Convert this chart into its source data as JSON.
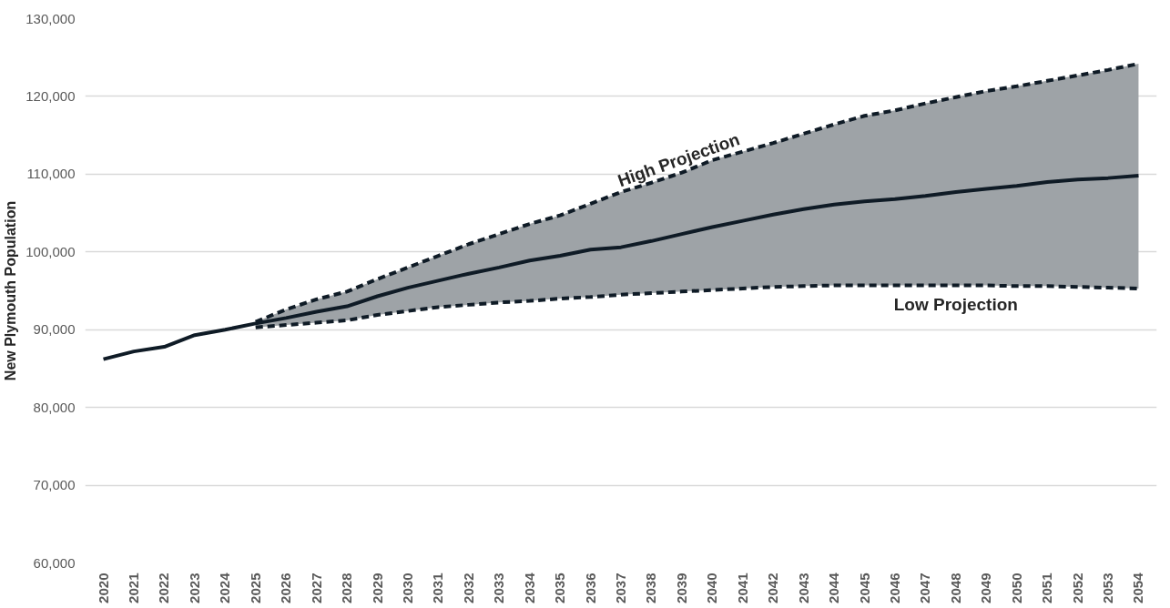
{
  "chart_data": {
    "type": "line",
    "ylabel": "New Plymouth Population",
    "categories": [
      "2020",
      "2021",
      "2022",
      "2023",
      "2024",
      "2025",
      "2026",
      "2027",
      "2028",
      "2029",
      "2030",
      "2031",
      "2032",
      "2033",
      "2034",
      "2035",
      "2036",
      "2037",
      "2038",
      "2039",
      "2040",
      "2041",
      "2042",
      "2043",
      "2044",
      "2045",
      "2046",
      "2047",
      "2048",
      "2049",
      "2050",
      "2051",
      "2052",
      "2053",
      "2054"
    ],
    "series": [
      {
        "color": "#0f1b26",
        "line_style": "solid",
        "values": [
          86200,
          87200,
          87800,
          89300,
          90000,
          90800,
          91500,
          92300,
          93000,
          94300,
          95400,
          96300,
          97200,
          98000,
          98900,
          99500,
          100300,
          100600,
          101400,
          102300,
          103200,
          104000,
          104800,
          105500,
          106100,
          106500,
          106800,
          107200,
          107700,
          108100,
          108500,
          109000,
          109300,
          109500,
          109800
        ],
        "lower": [
          null,
          null,
          null,
          null,
          null,
          90300,
          90600,
          90900,
          91200,
          91900,
          92400,
          92900,
          93200,
          93500,
          93700,
          94000,
          94200,
          94500,
          94700,
          94900,
          95100,
          95300,
          95500,
          95600,
          95700,
          95700,
          95700,
          95700,
          95700,
          95700,
          95600,
          95600,
          95500,
          95400,
          95300
        ],
        "upper": [
          null,
          null,
          null,
          null,
          null,
          91000,
          92600,
          93900,
          94900,
          96500,
          98000,
          99500,
          101000,
          102300,
          103600,
          104700,
          106200,
          107700,
          108900,
          110200,
          111800,
          112900,
          114000,
          115200,
          116400,
          117500,
          118200,
          119100,
          119900,
          120700,
          121300,
          122000,
          122700,
          123400,
          124200
        ]
      },
      {
        "name": "High Projection",
        "color": "#0f1b26",
        "line_style": "dashed",
        "values": [
          null,
          null,
          null,
          null,
          null,
          91000,
          92600,
          93900,
          94900,
          96500,
          98000,
          99500,
          101000,
          102300,
          103600,
          104700,
          106200,
          107700,
          108900,
          110200,
          111800,
          112900,
          114000,
          115200,
          116400,
          117500,
          118200,
          119100,
          119900,
          120700,
          121300,
          122000,
          122700,
          123400,
          124200
        ]
      },
      {
        "name": "Low Projection",
        "color": "#0f1b26",
        "line_style": "dashed",
        "values": [
          null,
          null,
          null,
          null,
          null,
          90300,
          90600,
          90900,
          91200,
          91900,
          92400,
          92900,
          93200,
          93500,
          93700,
          94000,
          94200,
          94500,
          94700,
          94900,
          95100,
          95300,
          95500,
          95600,
          95700,
          95700,
          95700,
          95700,
          95700,
          95700,
          95600,
          95600,
          95500,
          95400,
          95300
        ]
      }
    ],
    "ylim": [
      60000,
      130000
    ],
    "yticks": [
      {
        "value": 60000,
        "label": "60,000"
      },
      {
        "value": 70000,
        "label": "70,000"
      },
      {
        "value": 80000,
        "label": "80,000"
      },
      {
        "value": 90000,
        "label": "90,000"
      },
      {
        "value": 100000,
        "label": "100,000"
      },
      {
        "value": 110000,
        "label": "110,000"
      },
      {
        "value": 120000,
        "label": "120,000"
      },
      {
        "value": 130000,
        "label": "130,000"
      }
    ],
    "grid": "y",
    "marker": "none"
  }
}
